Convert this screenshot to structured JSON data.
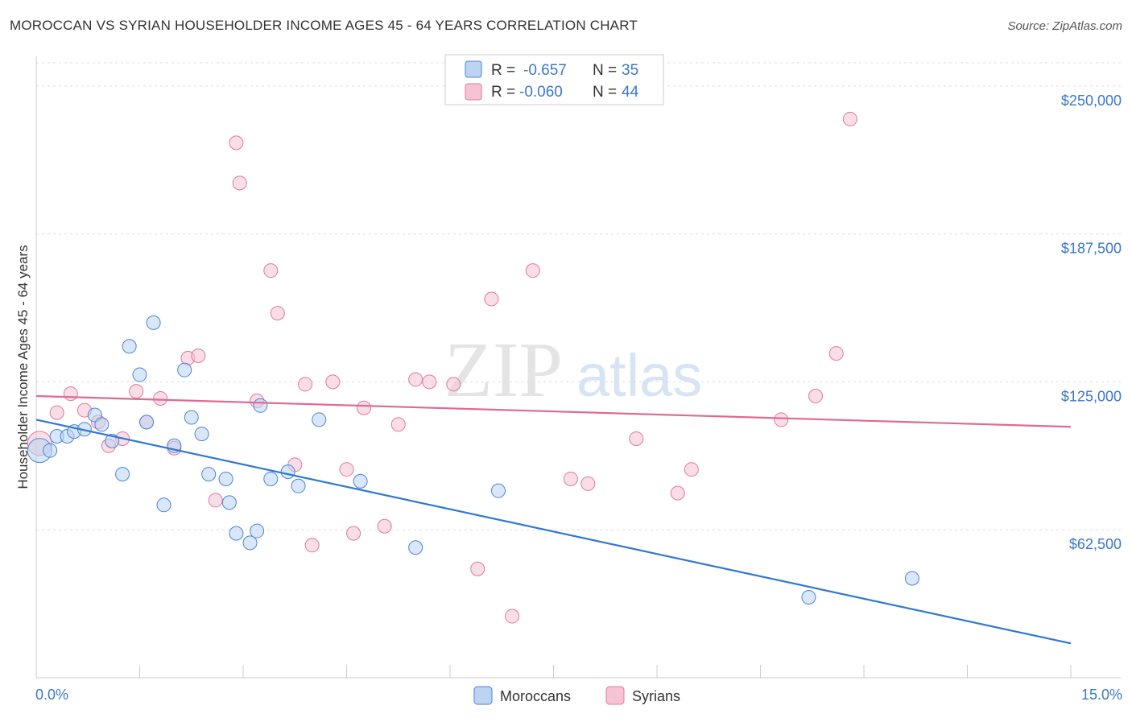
{
  "title": "MOROCCAN VS SYRIAN HOUSEHOLDER INCOME AGES 45 - 64 YEARS CORRELATION CHART",
  "source": "Source: ZipAtlas.com",
  "watermark": {
    "zip": "ZIP",
    "atlas": "atlas"
  },
  "colors": {
    "moroccans": "#4a86d8",
    "moroccans_fill": "#bcd4f2",
    "syrians": "#e0789c",
    "syrians_fill": "#f6c3d4",
    "axis_text": "#3a78c9",
    "grid": "#dddddd"
  },
  "legend": {
    "moroccans": {
      "r_label": "R =",
      "r_value": "-0.657",
      "n_label": "N =",
      "n_value": "35"
    },
    "syrians": {
      "r_label": "R =",
      "r_value": "-0.060",
      "n_label": "N =",
      "n_value": "44"
    }
  },
  "chart_data": {
    "type": "scatter",
    "title": "MOROCCAN VS SYRIAN HOUSEHOLDER INCOME AGES 45 - 64 YEARS CORRELATION CHART",
    "xlabel": "",
    "ylabel": "Householder Income Ages 45 - 64 years",
    "xlim": [
      0,
      15
    ],
    "ylim": [
      0,
      262500
    ],
    "x_tick_labels": [
      "0.0%",
      "15.0%"
    ],
    "y_ticks": [
      62500,
      125000,
      187500,
      250000
    ],
    "y_tick_labels": [
      "$62,500",
      "$125,000",
      "$187,500",
      "$250,000"
    ],
    "grid": true,
    "legend_placement": "top-center",
    "series": [
      {
        "name": "Moroccans",
        "points": [
          [
            0.05,
            96000
          ],
          [
            0.2,
            96000
          ],
          [
            0.3,
            102000
          ],
          [
            0.45,
            102000
          ],
          [
            0.55,
            104000
          ],
          [
            0.7,
            105000
          ],
          [
            0.85,
            111000
          ],
          [
            0.95,
            107000
          ],
          [
            1.1,
            100000
          ],
          [
            1.25,
            86000
          ],
          [
            1.35,
            140000
          ],
          [
            1.5,
            128000
          ],
          [
            1.6,
            108000
          ],
          [
            1.7,
            150000
          ],
          [
            1.85,
            73000
          ],
          [
            2.0,
            98000
          ],
          [
            2.15,
            130000
          ],
          [
            2.25,
            110000
          ],
          [
            2.4,
            103000
          ],
          [
            2.5,
            86000
          ],
          [
            2.75,
            84000
          ],
          [
            2.8,
            74000
          ],
          [
            2.9,
            61000
          ],
          [
            3.1,
            57000
          ],
          [
            3.2,
            62000
          ],
          [
            3.25,
            115000
          ],
          [
            3.4,
            84000
          ],
          [
            3.65,
            87000
          ],
          [
            3.8,
            81000
          ],
          [
            4.1,
            109000
          ],
          [
            4.7,
            83000
          ],
          [
            5.5,
            55000
          ],
          [
            6.7,
            79000
          ],
          [
            11.2,
            34000
          ],
          [
            12.7,
            42000
          ]
        ]
      },
      {
        "name": "Syrians",
        "points": [
          [
            0.05,
            99000
          ],
          [
            0.3,
            112000
          ],
          [
            0.5,
            120000
          ],
          [
            0.7,
            113000
          ],
          [
            0.9,
            108000
          ],
          [
            1.05,
            98000
          ],
          [
            1.25,
            101000
          ],
          [
            1.45,
            121000
          ],
          [
            1.6,
            108000
          ],
          [
            1.8,
            118000
          ],
          [
            2.0,
            97000
          ],
          [
            2.2,
            135000
          ],
          [
            2.35,
            136000
          ],
          [
            2.6,
            75000
          ],
          [
            2.9,
            226000
          ],
          [
            2.95,
            209000
          ],
          [
            3.2,
            117000
          ],
          [
            3.4,
            172000
          ],
          [
            3.5,
            154000
          ],
          [
            3.75,
            90000
          ],
          [
            3.9,
            124000
          ],
          [
            4.0,
            56000
          ],
          [
            4.3,
            125000
          ],
          [
            4.5,
            88000
          ],
          [
            4.6,
            61000
          ],
          [
            4.75,
            114000
          ],
          [
            5.05,
            64000
          ],
          [
            5.25,
            107000
          ],
          [
            5.5,
            126000
          ],
          [
            5.7,
            125000
          ],
          [
            6.05,
            124000
          ],
          [
            6.4,
            46000
          ],
          [
            6.6,
            160000
          ],
          [
            6.9,
            26000
          ],
          [
            7.2,
            172000
          ],
          [
            7.75,
            84000
          ],
          [
            8.0,
            82000
          ],
          [
            8.7,
            101000
          ],
          [
            9.3,
            78000
          ],
          [
            9.5,
            88000
          ],
          [
            10.8,
            109000
          ],
          [
            11.3,
            119000
          ],
          [
            11.6,
            137000
          ],
          [
            11.8,
            236000
          ]
        ]
      }
    ],
    "trend_lines": [
      {
        "name": "Moroccans",
        "x": [
          0,
          15
        ],
        "y": [
          109000,
          14500
        ]
      },
      {
        "name": "Syrians",
        "x": [
          0,
          15
        ],
        "y": [
          119000,
          106000
        ]
      }
    ],
    "bottom_legend": [
      "Moroccans",
      "Syrians"
    ]
  }
}
